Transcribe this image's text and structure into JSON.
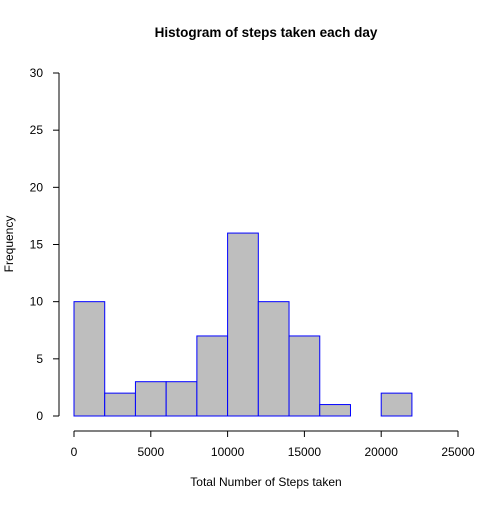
{
  "chart_data": {
    "type": "bar",
    "subtype": "histogram",
    "title": "Histogram of steps taken each day",
    "xlabel": "Total Number of Steps taken",
    "ylabel": "Frequency",
    "bin_edges": [
      0,
      2000,
      4000,
      6000,
      8000,
      10000,
      12000,
      14000,
      16000,
      18000,
      20000,
      22000
    ],
    "values": [
      10,
      2,
      3,
      3,
      7,
      16,
      10,
      7,
      1,
      0,
      2
    ],
    "xlim": [
      0,
      25000
    ],
    "ylim": [
      0,
      30
    ],
    "x_ticks": [
      0,
      5000,
      10000,
      15000,
      20000,
      25000
    ],
    "x_tick_labels": [
      "0",
      "5000",
      "10000",
      "15000",
      "20000",
      "25000"
    ],
    "y_ticks": [
      0,
      5,
      10,
      15,
      20,
      25,
      30
    ],
    "y_tick_labels": [
      "0",
      "5",
      "10",
      "15",
      "20",
      "25",
      "30"
    ],
    "grid": false,
    "legend": "none",
    "colors": {
      "bar_fill": "#bebebe",
      "bar_border": "#0000ff",
      "axis": "#000000"
    }
  }
}
